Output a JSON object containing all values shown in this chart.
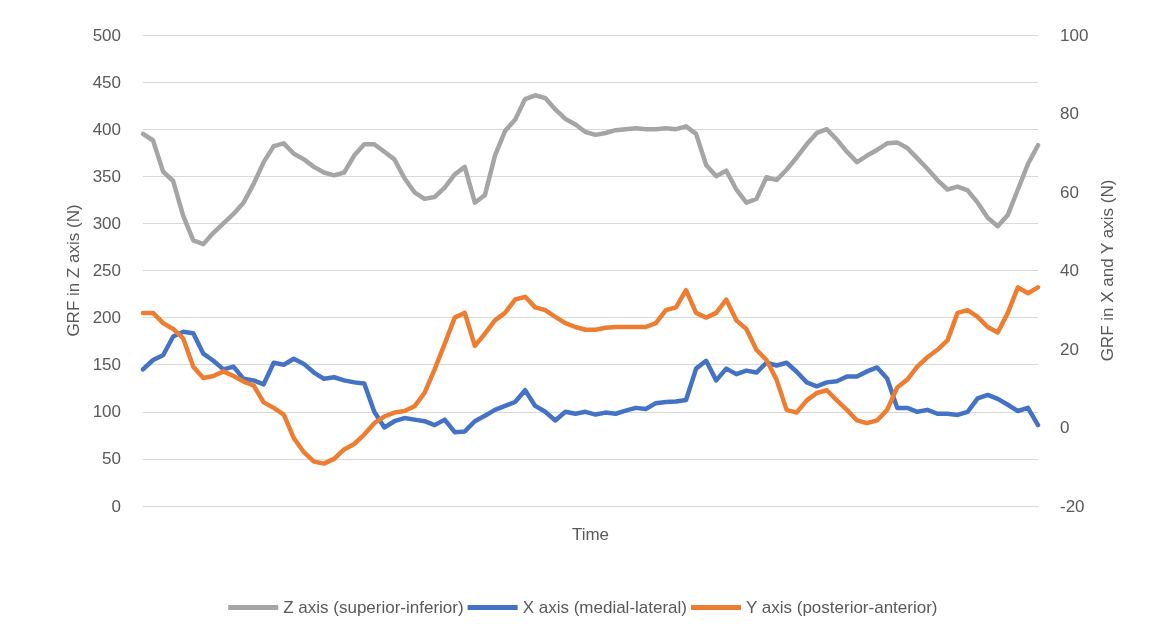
{
  "chart_data": {
    "type": "line",
    "xlabel": "Time",
    "ylabel": "GRF in Z axis (N)",
    "y2label": "GRF in X and Y axis (N)",
    "categories": [
      null,
      null,
      null,
      null,
      null,
      null,
      null,
      null,
      null,
      null,
      null,
      null,
      null,
      null,
      null,
      null,
      null,
      null,
      null,
      null,
      null,
      null,
      null,
      null,
      null,
      null,
      null,
      null,
      null,
      null,
      null,
      null,
      null,
      null,
      null,
      null,
      null,
      null,
      null,
      null,
      null,
      null,
      null,
      null,
      null,
      null,
      null,
      null,
      null,
      null,
      null,
      null,
      null,
      null,
      null,
      null,
      null,
      null,
      null,
      null,
      null,
      null,
      null,
      null,
      null,
      null,
      null,
      null,
      null,
      null,
      null,
      null,
      null,
      null,
      null,
      null,
      null,
      null,
      null,
      null,
      null,
      null,
      null,
      null,
      null,
      null,
      null,
      null,
      null,
      null
    ],
    "series": [
      {
        "name": "Z axis (superior-inferior)",
        "color": "#a5a5a5",
        "values": [
          395,
          388,
          355,
          345,
          308,
          282,
          278,
          290,
          300,
          310,
          322,
          342,
          365,
          382,
          385,
          374,
          368,
          360,
          354,
          351,
          354,
          372,
          384,
          384,
          376,
          368,
          348,
          333,
          326,
          328,
          338,
          352,
          360,
          322,
          330,
          372,
          398,
          410,
          432,
          436,
          433,
          421,
          411,
          405,
          397,
          394,
          396,
          399,
          400,
          401,
          400,
          400,
          401,
          400,
          403,
          395,
          362,
          350,
          356,
          336,
          322,
          326,
          349,
          346,
          357,
          370,
          384,
          396,
          400,
          389,
          376,
          365,
          372,
          378,
          385,
          386,
          380,
          369,
          358,
          346,
          336,
          339,
          335,
          322,
          306,
          297,
          309,
          336,
          363,
          383
        ]
      },
      {
        "name": "X axis (medial-lateral)",
        "color": "#4472c4",
        "axis": "y2",
        "values": [
          14.8,
          17.2,
          18.4,
          23.2,
          24.4,
          24,
          18.8,
          17,
          14.8,
          15.5,
          12.4,
          12,
          11,
          16.5,
          16,
          17.5,
          16.2,
          14,
          12.4,
          12.8,
          12,
          11.5,
          11.2,
          4,
          0,
          1.6,
          2.4,
          2,
          1.6,
          0.6,
          2,
          -1.2,
          -1,
          1.6,
          3,
          4.5,
          5.5,
          6.5,
          9.5,
          5.5,
          4,
          1.8,
          4,
          3.5,
          4,
          3.3,
          3.8,
          3.5,
          4.3,
          5,
          4.7,
          6.2,
          6.5,
          6.6,
          7,
          15,
          17,
          12,
          15,
          13.6,
          14.5,
          14,
          16.5,
          15.8,
          16.5,
          14.2,
          11.5,
          10.5,
          11.5,
          11.8,
          13,
          13,
          14.3,
          15.3,
          12.5,
          5,
          5,
          4,
          4.5,
          3.5,
          3.5,
          3.2,
          4,
          7.4,
          8.3,
          7.3,
          5.8,
          4.2,
          5,
          0.6
        ]
      },
      {
        "name": "Y axis (posterior-anterior)",
        "color": "#ed7d31",
        "axis": "y2",
        "values": [
          29.2,
          29.2,
          26.6,
          25.1,
          22.7,
          15.5,
          12.6,
          13.1,
          14.3,
          13.1,
          11.7,
          10.7,
          6.4,
          5,
          3.3,
          -2.7,
          -6.3,
          -8.7,
          -9.2,
          -8,
          -5.6,
          -4.2,
          -1.8,
          1.1,
          2.8,
          3.8,
          4.2,
          5.4,
          8.8,
          14.8,
          21.3,
          28,
          29.2,
          20.8,
          23.9,
          27.3,
          29.2,
          32.6,
          33.3,
          30.6,
          29.9,
          28.2,
          26.6,
          25.6,
          24.9,
          24.9,
          25.4,
          25.6,
          25.6,
          25.6,
          25.6,
          26.6,
          29.9,
          30.6,
          35,
          29.2,
          28,
          29.2,
          32.6,
          27.3,
          25.1,
          19.8,
          17.2,
          12.2,
          4.5,
          3.8,
          6.9,
          8.8,
          9.5,
          6.9,
          4.5,
          1.8,
          1.1,
          1.8,
          4.5,
          10.2,
          12.2,
          15.5,
          17.9,
          19.8,
          22.2,
          29.2,
          29.9,
          28.2,
          25.6,
          24.2,
          29.2,
          35.7,
          34.2,
          35.7
        ]
      }
    ],
    "ylim": [
      0,
      500
    ],
    "yticks": [
      0,
      50,
      100,
      150,
      200,
      250,
      300,
      350,
      400,
      450,
      500
    ],
    "y2lim": [
      -20,
      100
    ],
    "y2ticks": [
      -20,
      0,
      20,
      40,
      60,
      80,
      100
    ],
    "grid": "y",
    "legend": "bottom",
    "marker": "none",
    "line_style": "solid"
  }
}
